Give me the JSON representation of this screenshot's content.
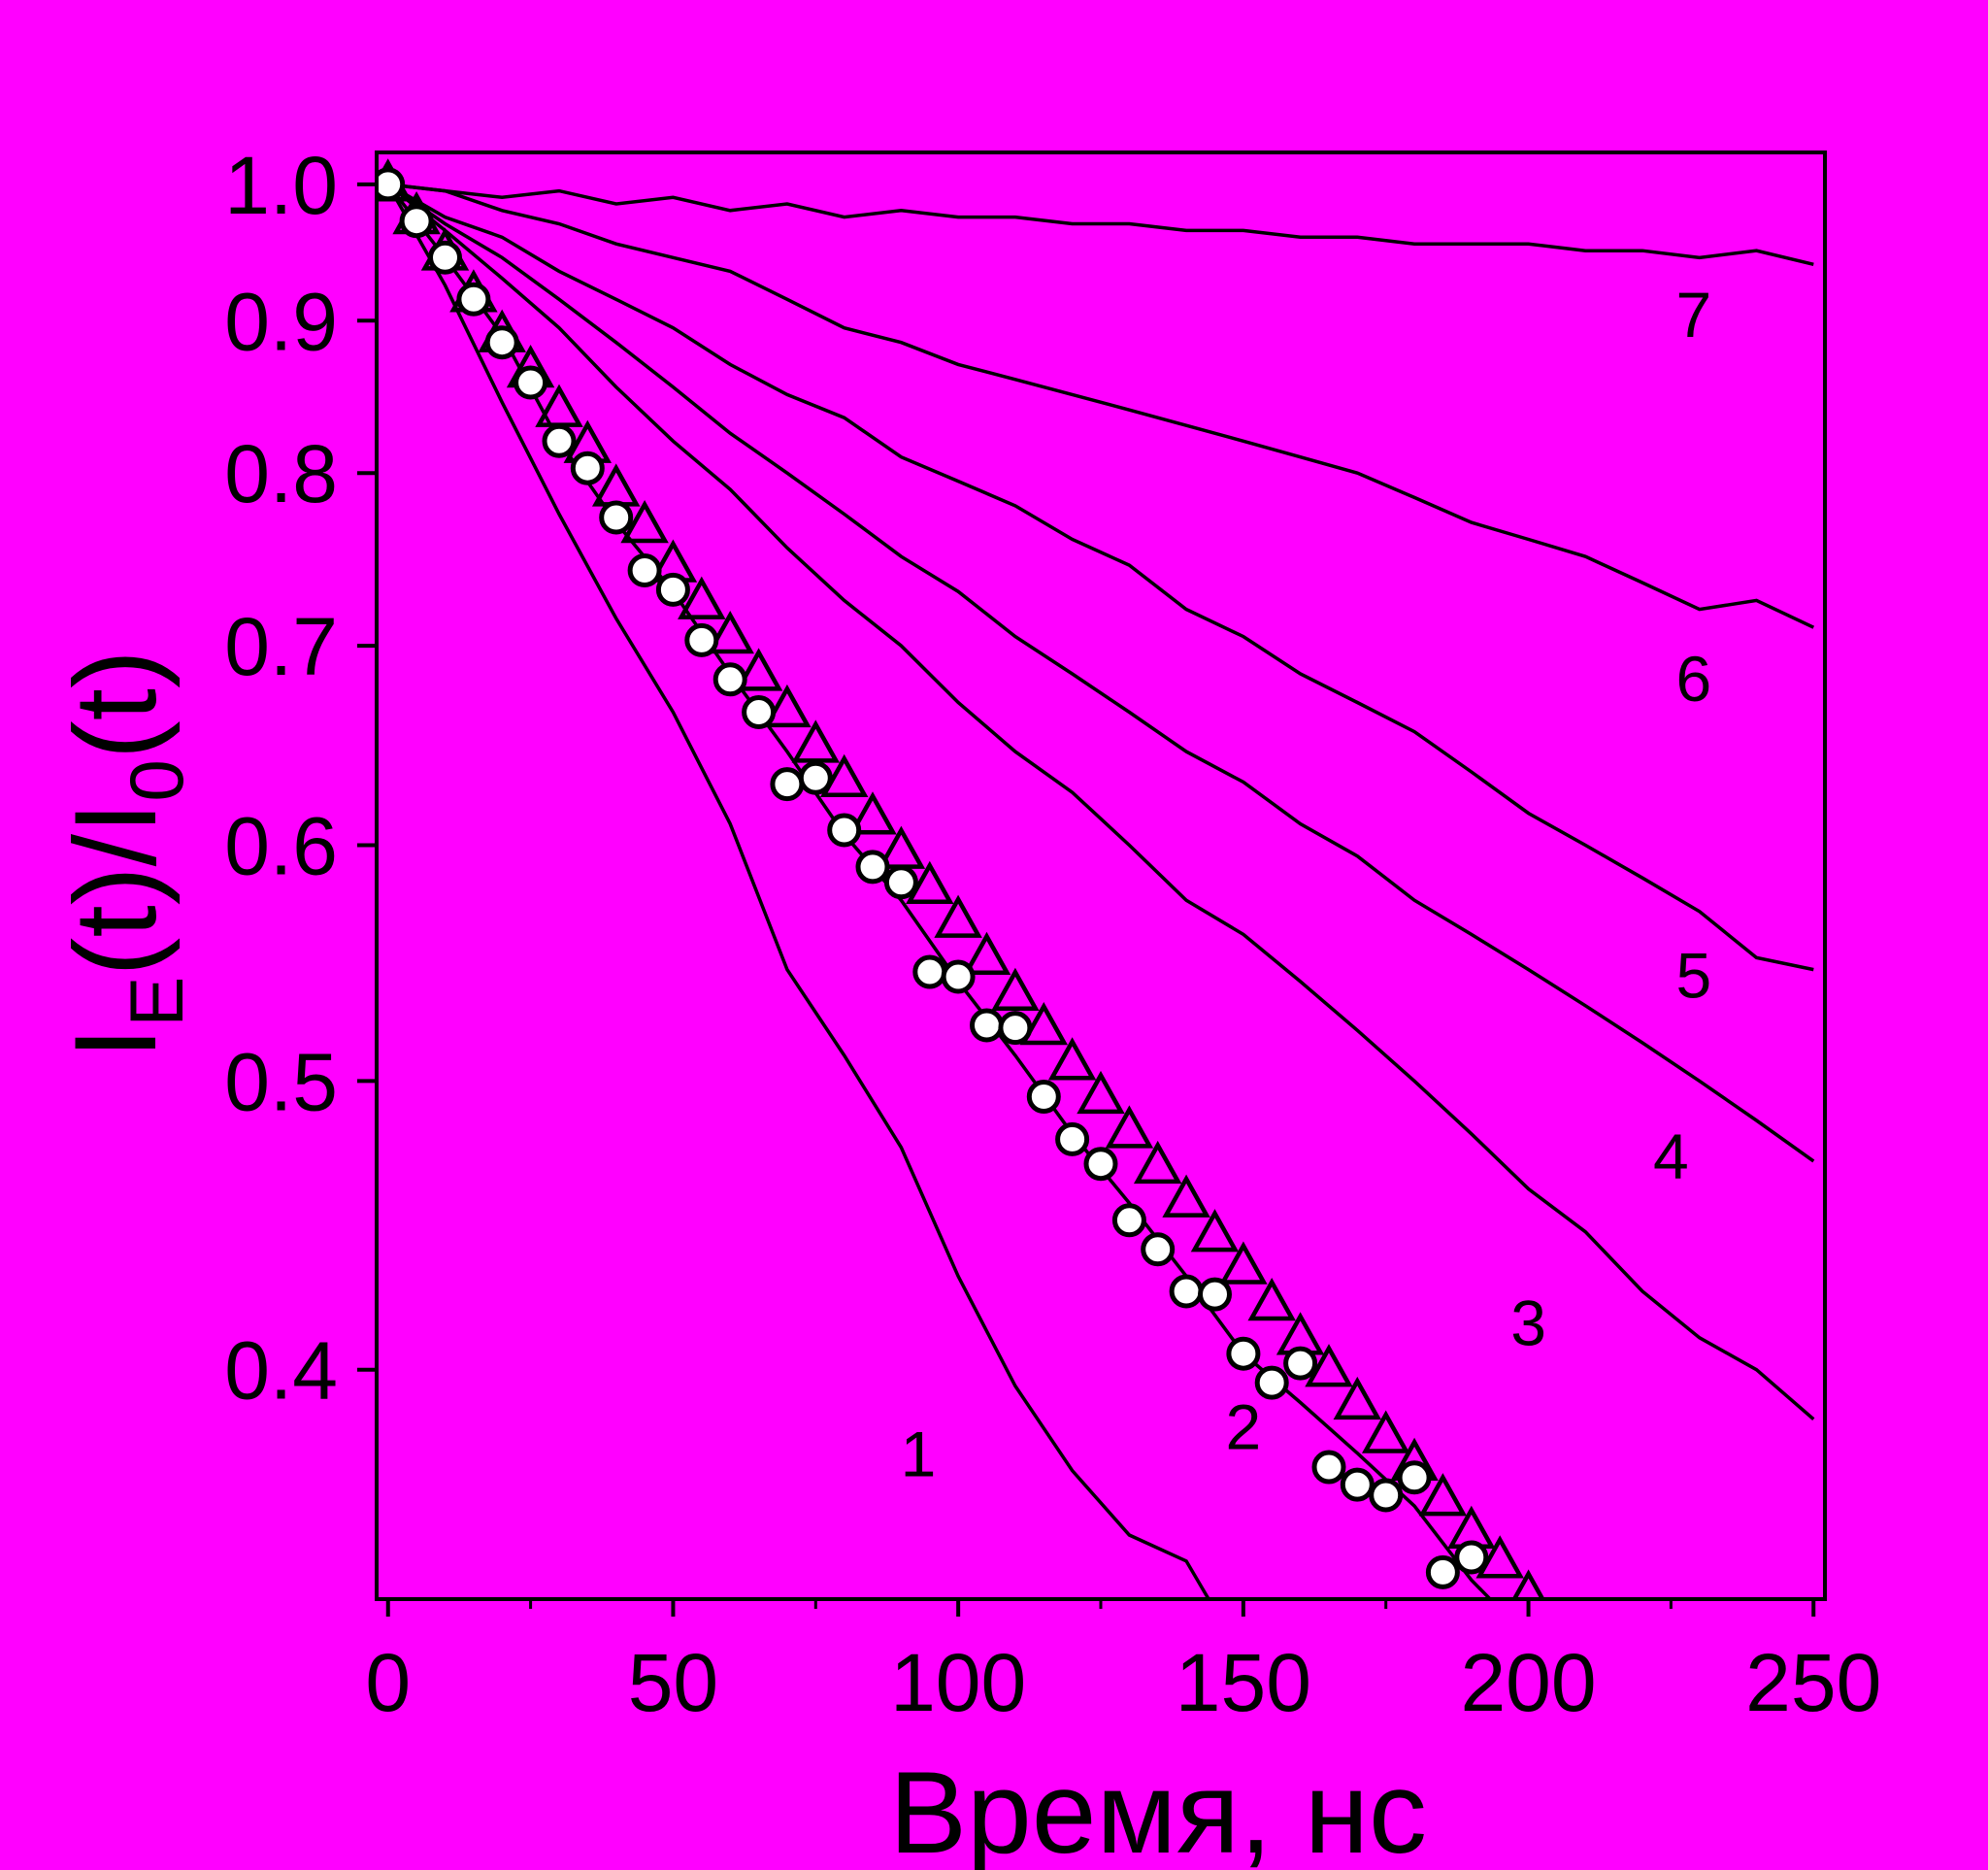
{
  "page": {
    "background": "#ff00ff"
  },
  "chart_data": {
    "type": "line",
    "title": "",
    "xlabel": "Время, нс",
    "ylabel": {
      "main": "I",
      "sub1": "E",
      "mid": "(t)/I",
      "sub2": "0",
      "end": "(t)"
    },
    "xlim": [
      -2,
      252
    ],
    "ylim": [
      0.335,
      1.025
    ],
    "yscale": "log",
    "grid": false,
    "legend": "none",
    "colors": {
      "line": "#000000",
      "circle_fill": "#ffffff",
      "triangle_fill": "none",
      "axis": "#000000"
    },
    "x_ticks": [
      {
        "value": 0,
        "label": "0"
      },
      {
        "value": 50,
        "label": "50"
      },
      {
        "value": 100,
        "label": "100"
      },
      {
        "value": 150,
        "label": "150"
      },
      {
        "value": 200,
        "label": "200"
      },
      {
        "value": 250,
        "label": "250"
      }
    ],
    "y_ticks": [
      {
        "value": 0.4,
        "label": "0.4"
      },
      {
        "value": 0.5,
        "label": "0.5"
      },
      {
        "value": 0.6,
        "label": "0.6"
      },
      {
        "value": 0.7,
        "label": "0.7"
      },
      {
        "value": 0.8,
        "label": "0.8"
      },
      {
        "value": 0.9,
        "label": "0.9"
      },
      {
        "value": 1.0,
        "label": "1.0"
      }
    ],
    "lines": [
      {
        "label": "1",
        "label_x": 93,
        "label_y": 0.375,
        "x": [
          0,
          10,
          20,
          30,
          40,
          50,
          60,
          70,
          80,
          90,
          100,
          110,
          120,
          130,
          140,
          150
        ],
        "y": [
          1.0,
          0.925,
          0.845,
          0.775,
          0.715,
          0.665,
          0.61,
          0.545,
          0.51,
          0.475,
          0.43,
          0.395,
          0.37,
          0.352,
          0.345,
          0.32
        ]
      },
      {
        "label": "2",
        "label_x": 150,
        "label_y": 0.383,
        "x": [
          0,
          10,
          20,
          30,
          40,
          50,
          60,
          70,
          80,
          90,
          100,
          110,
          120,
          130,
          140,
          150,
          160,
          170,
          180,
          190,
          200
        ],
        "y": [
          1.0,
          0.945,
          0.89,
          0.82,
          0.77,
          0.73,
          0.685,
          0.645,
          0.605,
          0.575,
          0.54,
          0.51,
          0.48,
          0.455,
          0.43,
          0.405,
          0.39,
          0.375,
          0.36,
          0.34,
          0.325
        ]
      },
      {
        "label": "3",
        "label_x": 200,
        "label_y": 0.415,
        "x": [
          0,
          10,
          20,
          30,
          40,
          50,
          60,
          70,
          80,
          90,
          100,
          110,
          120,
          130,
          140,
          150,
          160,
          170,
          180,
          190,
          200,
          210,
          220,
          230,
          240,
          250
        ],
        "y": [
          1.0,
          0.965,
          0.93,
          0.895,
          0.855,
          0.82,
          0.79,
          0.755,
          0.725,
          0.7,
          0.67,
          0.645,
          0.625,
          0.6,
          0.575,
          0.56,
          0.54,
          0.52,
          0.5,
          0.48,
          0.46,
          0.445,
          0.425,
          0.41,
          0.4,
          0.385
        ]
      },
      {
        "label": "4",
        "label_x": 225,
        "label_y": 0.472,
        "x": [
          0,
          10,
          20,
          30,
          40,
          50,
          60,
          70,
          80,
          90,
          100,
          110,
          120,
          130,
          140,
          150,
          160,
          170,
          180,
          190,
          200,
          210,
          220,
          230,
          240,
          250
        ],
        "y": [
          1.0,
          0.97,
          0.945,
          0.915,
          0.885,
          0.855,
          0.825,
          0.8,
          0.775,
          0.75,
          0.73,
          0.705,
          0.685,
          0.665,
          0.645,
          0.63,
          0.61,
          0.595,
          0.575,
          0.56,
          0.545,
          0.53,
          0.515,
          0.5,
          0.485,
          0.47
        ]
      },
      {
        "label": "5",
        "label_x": 229,
        "label_y": 0.543,
        "x": [
          0,
          10,
          20,
          30,
          40,
          50,
          60,
          70,
          80,
          90,
          100,
          110,
          120,
          130,
          140,
          150,
          160,
          170,
          180,
          190,
          200,
          210,
          220,
          230,
          240,
          250
        ],
        "y": [
          1.0,
          0.975,
          0.96,
          0.935,
          0.915,
          0.895,
          0.87,
          0.85,
          0.835,
          0.81,
          0.795,
          0.78,
          0.76,
          0.745,
          0.72,
          0.705,
          0.685,
          0.67,
          0.655,
          0.635,
          0.615,
          0.6,
          0.585,
          0.57,
          0.55,
          0.545
        ]
      },
      {
        "label": "6",
        "label_x": 229,
        "label_y": 0.683,
        "x": [
          0,
          10,
          20,
          30,
          40,
          50,
          60,
          70,
          80,
          90,
          100,
          110,
          120,
          130,
          140,
          150,
          160,
          170,
          180,
          190,
          200,
          210,
          220,
          230,
          240,
          250
        ],
        "y": [
          1.0,
          0.995,
          0.98,
          0.97,
          0.955,
          0.945,
          0.935,
          0.915,
          0.895,
          0.885,
          0.87,
          0.86,
          0.85,
          0.84,
          0.83,
          0.82,
          0.81,
          0.8,
          0.785,
          0.77,
          0.76,
          0.75,
          0.735,
          0.72,
          0.725,
          0.71
        ]
      },
      {
        "label": "7",
        "label_x": 229,
        "label_y": 0.905,
        "x": [
          0,
          10,
          20,
          30,
          40,
          50,
          60,
          70,
          80,
          90,
          100,
          110,
          120,
          130,
          140,
          150,
          160,
          170,
          180,
          190,
          200,
          210,
          220,
          230,
          240,
          250
        ],
        "y": [
          1.0,
          0.995,
          0.99,
          0.995,
          0.985,
          0.99,
          0.98,
          0.985,
          0.975,
          0.98,
          0.975,
          0.975,
          0.97,
          0.97,
          0.965,
          0.965,
          0.96,
          0.96,
          0.955,
          0.955,
          0.955,
          0.95,
          0.95,
          0.945,
          0.95,
          0.94
        ]
      }
    ],
    "markers": [
      {
        "shape": "circle",
        "x": [
          0,
          5,
          10,
          15,
          20,
          25,
          30,
          35,
          40,
          45,
          50,
          55,
          60,
          65,
          70,
          75,
          80,
          85,
          90,
          95,
          100,
          105,
          110,
          115,
          120,
          125,
          130,
          135,
          140,
          145,
          150,
          155,
          160,
          165,
          170,
          175,
          180,
          185,
          190,
          200,
          205
        ],
        "y": [
          1.0,
          0.972,
          0.945,
          0.915,
          0.885,
          0.858,
          0.82,
          0.803,
          0.773,
          0.742,
          0.731,
          0.703,
          0.682,
          0.665,
          0.629,
          0.632,
          0.607,
          0.59,
          0.583,
          0.544,
          0.542,
          0.522,
          0.521,
          0.494,
          0.478,
          0.469,
          0.449,
          0.439,
          0.425,
          0.424,
          0.405,
          0.396,
          0.402,
          0.371,
          0.366,
          0.363,
          0.368,
          0.342,
          0.346,
          0.327,
          0.322
        ]
      },
      {
        "shape": "triangle",
        "x": [
          0,
          5,
          10,
          15,
          20,
          25,
          30,
          35,
          40,
          45,
          50,
          55,
          60,
          65,
          70,
          75,
          80,
          85,
          90,
          95,
          100,
          105,
          110,
          115,
          120,
          125,
          130,
          135,
          140,
          145,
          150,
          155,
          160,
          165,
          170,
          175,
          180,
          185,
          190,
          195,
          200,
          205,
          210
        ],
        "y": [
          1.0,
          0.975,
          0.948,
          0.918,
          0.89,
          0.866,
          0.84,
          0.817,
          0.79,
          0.768,
          0.745,
          0.724,
          0.705,
          0.685,
          0.666,
          0.648,
          0.631,
          0.613,
          0.597,
          0.581,
          0.566,
          0.55,
          0.535,
          0.521,
          0.507,
          0.494,
          0.481,
          0.468,
          0.456,
          0.444,
          0.433,
          0.421,
          0.41,
          0.4,
          0.39,
          0.38,
          0.372,
          0.362,
          0.353,
          0.345,
          0.336,
          0.327,
          0.318
        ]
      }
    ]
  }
}
